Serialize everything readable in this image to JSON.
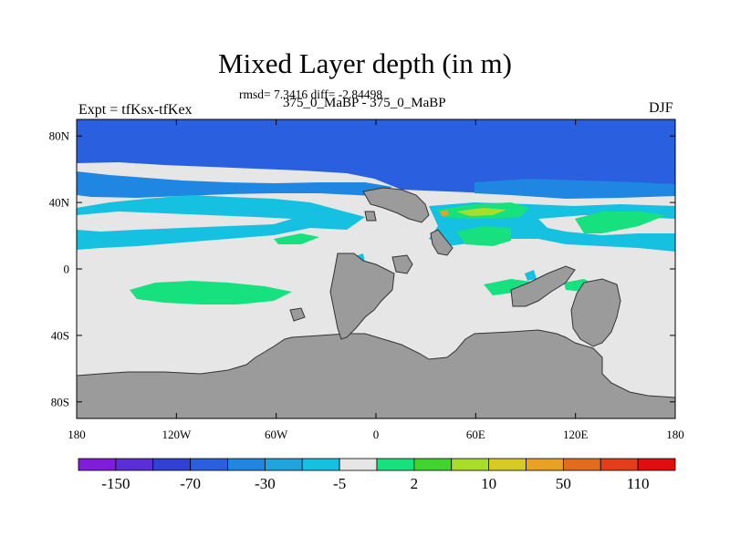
{
  "title": "Mixed Layer depth (in m)",
  "stats_text": "rmsd= 7.3416  diff= -2.84498",
  "left_label": "Expt = tfKsx-tfKex",
  "center_label": "375_0_MaBP - 375_0_MaBP",
  "right_label": "DJF",
  "map": {
    "projection": "cylindrical-equidistant",
    "lon_range": [
      -180,
      180
    ],
    "lat_range": [
      -90,
      90
    ],
    "land_color": "#9b9b9b",
    "background_color": "#e6e6e6"
  },
  "y_ticks": [
    {
      "lat": 80,
      "label": "80N"
    },
    {
      "lat": 40,
      "label": "40N"
    },
    {
      "lat": 0,
      "label": "0"
    },
    {
      "lat": -40,
      "label": "40S"
    },
    {
      "lat": -80,
      "label": "80S"
    }
  ],
  "x_ticks": [
    {
      "lon": -180,
      "label": "180"
    },
    {
      "lon": -120,
      "label": "120W"
    },
    {
      "lon": -60,
      "label": "60W"
    },
    {
      "lon": 0,
      "label": "0"
    },
    {
      "lon": 60,
      "label": "60E"
    },
    {
      "lon": 120,
      "label": "120E"
    },
    {
      "lon": 180,
      "label": "180"
    }
  ],
  "colorbar": {
    "colors": [
      "#7f1ddb",
      "#5a2fd8",
      "#3340d6",
      "#2a5fe0",
      "#1f86e2",
      "#1fa4dd",
      "#15c0e0",
      "#e6e6e6",
      "#17e07e",
      "#3fd52d",
      "#a9dd2a",
      "#d8ca25",
      "#e9a123",
      "#e36b1d",
      "#e33d1a",
      "#e00e0e"
    ],
    "labels": [
      "-150",
      "-70",
      "-30",
      "-5",
      "2",
      "10",
      "50",
      "110"
    ]
  }
}
